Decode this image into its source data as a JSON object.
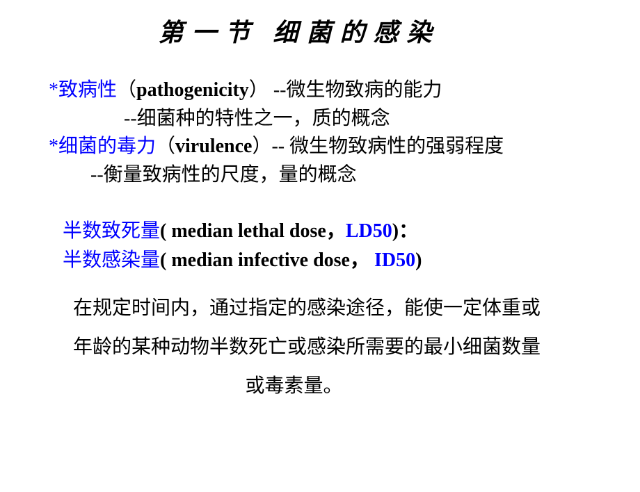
{
  "title": "第一节  细菌的感染",
  "section1": {
    "asterisk": "*",
    "term_cn": "致病性",
    "paren_open": "（",
    "term_en": "pathogenicity",
    "paren_close": "）",
    "dash_desc": " --",
    "desc1": "微生物致病的能力",
    "line2_prefix": "--",
    "line2_text": "细菌种的特性之一，质的概念"
  },
  "section2": {
    "asterisk": "*",
    "term_cn": "细菌的毒力",
    "paren_open": "（",
    "term_en": "virulence",
    "paren_close": "）",
    "dash": "-- ",
    "desc1": "微生物致病性的强弱程度",
    "line2_prefix": "--",
    "line2_text": "衡量致病性的尺度，量的概念"
  },
  "ld50": {
    "term_cn": "半数致死量",
    "paren_open": "( ",
    "term_en": "median lethal dose",
    "comma": "，",
    "abbrev": "LD50",
    "paren_close": ")",
    "colon": "："
  },
  "id50": {
    "term_cn": "半数感染量",
    "paren_open": "( ",
    "term_en": "median infective dose",
    "comma": "，",
    "abbrev": " ID50",
    "paren_close": ")"
  },
  "explanation": {
    "line1": "在规定时间内，通过指定的感染途径，能使一定体重或",
    "line2": "年龄的某种动物半数死亡或感染所需要的最小细菌数量",
    "line3": "或毒素量。"
  },
  "colors": {
    "blue": "#0000ff",
    "black": "#000000",
    "background": "#ffffff"
  },
  "typography": {
    "title_fontsize": 36,
    "body_fontsize": 28,
    "title_font": "KaiTi",
    "body_font": "SimSun"
  }
}
